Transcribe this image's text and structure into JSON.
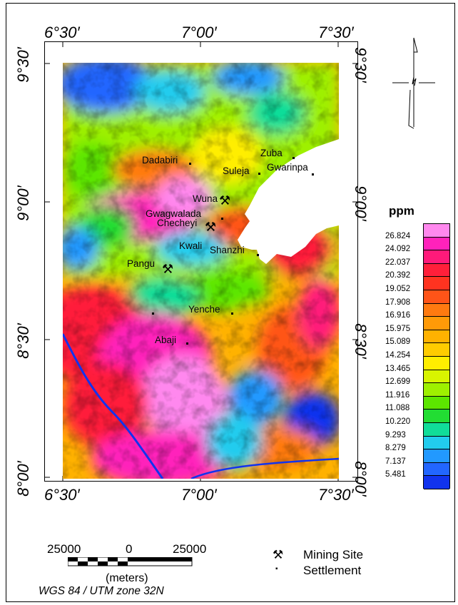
{
  "graticule": {
    "top": [
      "6°30′",
      "7°00′",
      "7°30′"
    ],
    "bottom": [
      "6°30′",
      "7°00′",
      "7°30′"
    ],
    "left": [
      "9°30′",
      "9°00′",
      "8°30′",
      "8°00′"
    ],
    "right": [
      "9°30′",
      "9°00′",
      "8°30′",
      "8°00′"
    ]
  },
  "places": [
    {
      "name": "Dadabiri",
      "dot": true
    },
    {
      "name": "Suleja",
      "dot": true
    },
    {
      "name": "Zuba",
      "dot": true
    },
    {
      "name": "Gwarinpa",
      "dot": false
    },
    {
      "name": "Wuna",
      "dot": false
    },
    {
      "name": "Gwagwalada",
      "dot": true
    },
    {
      "name": "Checheyi",
      "dot": false
    },
    {
      "name": "Kwali",
      "dot": false
    },
    {
      "name": "Shanzhi",
      "dot": true
    },
    {
      "name": "Pangu",
      "dot": false
    },
    {
      "name": "Yenche",
      "dot": true
    },
    {
      "name": "Abaji",
      "dot": true
    }
  ],
  "mining_sites": [
    "Wuna",
    "Checheyi",
    "Pangu"
  ],
  "legend": {
    "title": "ppm",
    "values": [
      "26.824",
      "24.092",
      "22.037",
      "20.392",
      "19.052",
      "17.908",
      "16.916",
      "15.975",
      "15.089",
      "14.254",
      "13.465",
      "12.699",
      "11.916",
      "11.088",
      "10.220",
      "9.293",
      "8.279",
      "7.137",
      "5.481"
    ],
    "colors": [
      "#ff88ee",
      "#ff22bb",
      "#ff1a7a",
      "#ff1f3a",
      "#ff3320",
      "#ff5418",
      "#ff7a10",
      "#ff9a08",
      "#ffb200",
      "#ffcc00",
      "#ffee00",
      "#d8f400",
      "#9ef000",
      "#5ce600",
      "#22dd33",
      "#11dd99",
      "#22ccee",
      "#2299ff",
      "#2266ff",
      "#1133ee"
    ]
  },
  "scalebar": {
    "left": "25000",
    "mid": "0",
    "right": "25000",
    "units": "(meters)"
  },
  "projection": "WGS 84 / UTM zone 32N",
  "key": [
    {
      "icon": "⚒",
      "label": "Mining Site"
    },
    {
      "icon": "▪",
      "label": "Settlement"
    }
  ]
}
